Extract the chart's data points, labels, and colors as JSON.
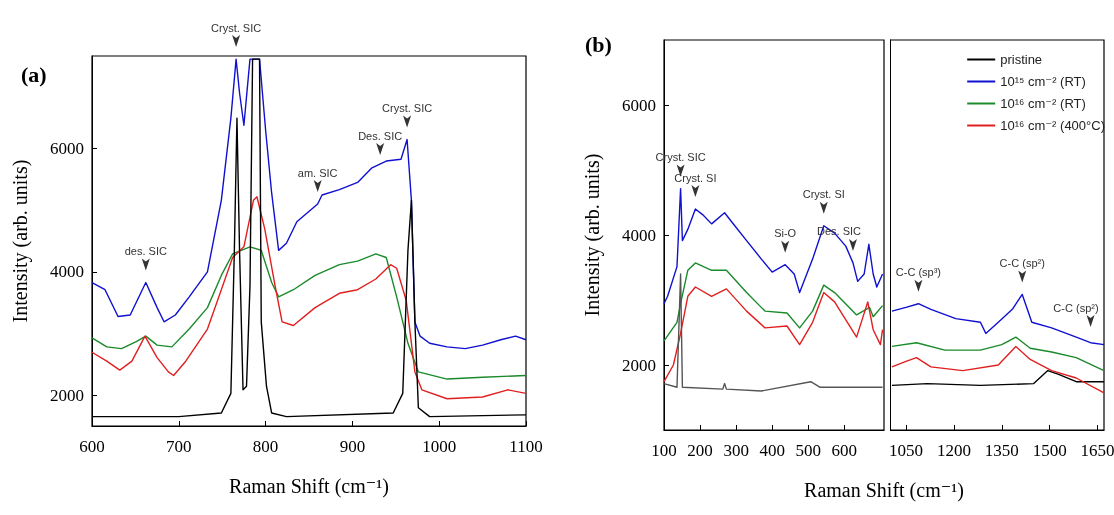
{
  "chart_data": [
    {
      "type": "line",
      "title": "(a)",
      "xlabel": "Raman Shift (cm⁻¹)",
      "ylabel": "Intensity (arb. units)",
      "xlim": [
        600,
        1100
      ],
      "ylim": [
        1500,
        7500
      ],
      "xticks": [
        600,
        700,
        800,
        900,
        1000,
        1100
      ],
      "yticks": [
        2000,
        4000,
        6000
      ],
      "series": [
        {
          "color": "#1010d0",
          "x": [
            600,
            615,
            630,
            644,
            662,
            675,
            683,
            696,
            712,
            733,
            749,
            760,
            766,
            770,
            775,
            782,
            787,
            793,
            800,
            807,
            815,
            824,
            836,
            860,
            865,
            885,
            906,
            922,
            939,
            956,
            963,
            968,
            972,
            978,
            989,
            1009,
            1030,
            1050,
            1071,
            1088,
            1100
          ],
          "values": [
            3826,
            3710,
            3275,
            3300,
            3826,
            3420,
            3190,
            3300,
            3594,
            4000,
            5160,
            6493,
            7450,
            6900,
            6377,
            7450,
            7450,
            7450,
            6300,
            5275,
            4348,
            4464,
            4812,
            5100,
            5246,
            5333,
            5450,
            5681,
            5797,
            5826,
            6145,
            5159,
            3188,
            2957,
            2841,
            2783,
            2754,
            2812,
            2899,
            2957,
            2899
          ]
        },
        {
          "color": "#1a8a2a",
          "x": [
            600,
            617,
            634,
            651,
            662,
            675,
            692,
            712,
            733,
            749,
            762,
            782,
            795,
            807,
            815,
            832,
            857,
            885,
            906,
            927,
            939,
            951,
            964,
            976,
            1009,
            1050,
            1100
          ],
          "values": [
            2928,
            2783,
            2754,
            2870,
            2957,
            2812,
            2783,
            3072,
            3420,
            3942,
            4290,
            4406,
            4348,
            3826,
            3594,
            3710,
            3942,
            4116,
            4174,
            4290,
            4232,
            3594,
            2841,
            2377,
            2261,
            2290,
            2319
          ]
        },
        {
          "color": "#e02020",
          "x": [
            600,
            617,
            632,
            646,
            661,
            675,
            688,
            694,
            708,
            733,
            749,
            762,
            775,
            786,
            790,
            799,
            811,
            819,
            832,
            857,
            885,
            906,
            927,
            944,
            951,
            962,
            972,
            980,
            1009,
            1050,
            1079,
            1100
          ],
          "values": [
            2696,
            2551,
            2406,
            2551,
            2957,
            2609,
            2377,
            2319,
            2551,
            3072,
            3710,
            4232,
            4406,
            5159,
            5217,
            4696,
            3768,
            3188,
            3130,
            3420,
            3652,
            3710,
            3884,
            4116,
            4058,
            3536,
            2377,
            2087,
            1942,
            1971,
            2087,
            2029
          ]
        },
        {
          "color": "#000000",
          "x": [
            600,
            700,
            749,
            760,
            764,
            767,
            770,
            774,
            778,
            782,
            785,
            789,
            793,
            795,
            801,
            807,
            824,
            947,
            958,
            964,
            968,
            972,
            976,
            989,
            1100
          ],
          "values": [
            1652,
            1652,
            1710,
            2029,
            4348,
            6493,
            4348,
            2087,
            2145,
            3768,
            7450,
            7450,
            7450,
            3188,
            2145,
            1710,
            1652,
            1710,
            2029,
            4348,
            5159,
            3188,
            1797,
            1652,
            1681
          ]
        }
      ],
      "annotations": [
        {
          "text": "des. SIC",
          "x": 662,
          "y": 3826
        },
        {
          "text": "Cryst. SIC",
          "x": 766,
          "y": 7450
        },
        {
          "text": "am. SIC",
          "x": 860,
          "y": 5100
        },
        {
          "text": "Des. SIC",
          "x": 932,
          "y": 5700
        },
        {
          "text": "Cryst. SIC",
          "x": 963,
          "y": 6145
        }
      ]
    },
    {
      "type": "line",
      "title": "(b)",
      "xlabel": "Raman Shift (cm⁻¹)",
      "ylabel": "Intensity (arb. units)",
      "xlim": [
        100,
        710
      ],
      "ylim": [
        1000,
        7000
      ],
      "xticks": [
        100,
        200,
        300,
        400,
        500,
        600
      ],
      "yticks": [
        2000,
        4000,
        6000
      ],
      "series": [
        {
          "color": "#1010d0",
          "x": [
            100,
            110,
            136,
            146,
            151,
            166,
            187,
            207,
            232,
            268,
            288,
            329,
            370,
            400,
            436,
            461,
            476,
            512,
            543,
            573,
            604,
            624,
            637,
            655,
            668,
            680,
            690,
            706
          ],
          "values": [
            2943,
            3057,
            3514,
            4714,
            3914,
            4086,
            4400,
            4314,
            4171,
            4343,
            4200,
            3914,
            3629,
            3429,
            3543,
            3400,
            3114,
            3629,
            4143,
            4029,
            3829,
            3571,
            3286,
            3400,
            3857,
            3400,
            3200,
            3400
          ]
        },
        {
          "color": "#1a8a2a",
          "x": [
            100,
            136,
            146,
            166,
            187,
            232,
            273,
            329,
            380,
            441,
            476,
            512,
            543,
            573,
            634,
            670,
            680,
            706
          ],
          "values": [
            2371,
            2657,
            2943,
            3457,
            3571,
            3457,
            3457,
            3114,
            2829,
            2800,
            2571,
            2829,
            3229,
            3114,
            2771,
            2886,
            2743,
            2914
          ]
        },
        {
          "color": "#e02020",
          "x": [
            100,
            126,
            146,
            166,
            187,
            232,
            273,
            329,
            380,
            441,
            476,
            512,
            543,
            573,
            634,
            665,
            680,
            700,
            706
          ],
          "values": [
            1743,
            2000,
            2486,
            3057,
            3200,
            3057,
            3171,
            2829,
            2571,
            2600,
            2314,
            2657,
            3114,
            2971,
            2429,
            2971,
            2543,
            2314,
            2543
          ]
        },
        {
          "color": "#555555",
          "x": [
            100,
            136,
            146,
            151,
            263,
            268,
            273,
            370,
            507,
            533,
            706
          ],
          "values": [
            1714,
            1657,
            3400,
            1657,
            1629,
            1714,
            1629,
            1600,
            1743,
            1657,
            1657
          ]
        }
      ],
      "annotations": [
        {
          "text": "Cryst. SIC",
          "x": 146,
          "y": 4714
        },
        {
          "text": "Cryst. SI",
          "x": 187,
          "y": 4400
        },
        {
          "text": "Si-O",
          "x": 436,
          "y": 3543
        },
        {
          "text": "Cryst. SI",
          "x": 543,
          "y": 4143
        },
        {
          "text": "Des. SIC",
          "x": 624,
          "y": 3571
        }
      ]
    },
    {
      "type": "line",
      "xlim": [
        1000,
        1670
      ],
      "ylim": [
        1000,
        7000
      ],
      "xticks": [
        1050,
        1200,
        1350,
        1500,
        1650
      ],
      "yticks": [
        2000,
        4000,
        6000
      ],
      "tick_labels": "x",
      "legend": "top right",
      "series": [
        {
          "name": "pristine",
          "color": "#000000",
          "x": [
            1006,
            1117,
            1283,
            1450,
            1494,
            1528,
            1583,
            1670
          ],
          "values": [
            1686,
            1714,
            1686,
            1714,
            1914,
            1857,
            1743,
            1743
          ]
        },
        {
          "name": "10¹⁵ cm⁻² (RT)",
          "color": "#1010d0",
          "x": [
            1006,
            1050,
            1089,
            1128,
            1206,
            1283,
            1300,
            1339,
            1383,
            1414,
            1444,
            1506,
            1583,
            1628,
            1670
          ],
          "values": [
            2829,
            2886,
            2943,
            2857,
            2714,
            2657,
            2486,
            2657,
            2857,
            3086,
            2657,
            2571,
            2429,
            2343,
            2314
          ]
        },
        {
          "name": "10¹⁶ cm⁻² (RT)",
          "color": "#1a8a2a",
          "x": [
            1006,
            1083,
            1172,
            1283,
            1350,
            1394,
            1439,
            1506,
            1583,
            1670
          ],
          "values": [
            2286,
            2343,
            2229,
            2229,
            2314,
            2429,
            2257,
            2200,
            2114,
            1914
          ]
        },
        {
          "name": "10¹⁶ cm⁻² (400°C)",
          "color": "#e02020",
          "x": [
            1006,
            1050,
            1083,
            1128,
            1228,
            1339,
            1394,
            1439,
            1506,
            1583,
            1670
          ],
          "values": [
            1971,
            2057,
            2114,
            1971,
            1914,
            2000,
            2286,
            2086,
            1914,
            1800,
            1571
          ]
        }
      ],
      "annotations": [
        {
          "text": "C-C (sp³)",
          "x": 1089,
          "y": 2943
        },
        {
          "text": "C-C (sp²)",
          "x": 1414,
          "y": 3086
        },
        {
          "text": "C-C (sp²)",
          "x": 1628,
          "y": 2400
        }
      ]
    }
  ]
}
